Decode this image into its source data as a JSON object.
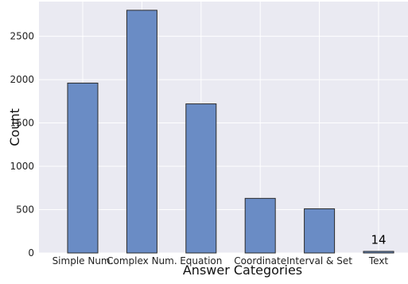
{
  "chart_data": {
    "type": "bar",
    "title": "",
    "xlabel": "Answer Categories",
    "ylabel": "Count",
    "categories": [
      "Simple Num.",
      "Complex Num.",
      "Equation",
      "Coordinate",
      "Interval & Set",
      "Text"
    ],
    "values": [
      1960,
      2800,
      1720,
      630,
      510,
      14
    ],
    "ylim": [
      0,
      2900
    ],
    "yticks": [
      0,
      500,
      1000,
      1500,
      2000,
      2500
    ],
    "annotations": [
      {
        "category": "Text",
        "label": "14"
      }
    ],
    "grid": true,
    "legend": "none"
  },
  "colors": {
    "plot_background": "#eaeaf2",
    "grid": "#ffffff",
    "bar_fill": "#6a8cc5",
    "bar_edge": "#2b2b2b"
  }
}
